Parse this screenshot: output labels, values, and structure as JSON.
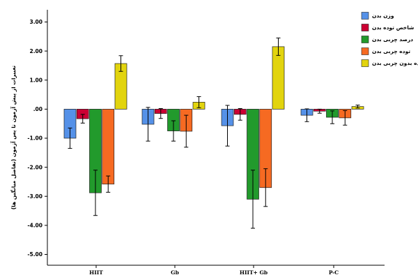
{
  "chart_data": {
    "type": "bar",
    "ylabel": "تغییرات از پیش آزمون تا پس آزمون (تفاضل میانگین ها)",
    "xlabel": "",
    "ylim": [
      -5.0,
      3.0
    ],
    "y_ticks": [
      "3.00",
      "2.00",
      "1.00",
      ".00",
      "-1.00",
      "-2.00",
      "-3.00",
      "-4.00",
      "-5.00"
    ],
    "categories": [
      "HIIT",
      "Gb",
      "HIIT+ Gb",
      "P-C"
    ],
    "legend_position": "top-right",
    "error_bars": true,
    "series": [
      {
        "name": "وزن بدن",
        "color": "#5591e8",
        "values": [
          -1.0,
          -0.52,
          -0.57,
          -0.21
        ],
        "errors": [
          0.35,
          0.58,
          0.7,
          0.22
        ]
      },
      {
        "name": "شاخص توده بدن",
        "color": "#cc0033",
        "values": [
          -0.33,
          -0.15,
          -0.18,
          -0.07
        ],
        "errors": [
          0.15,
          0.17,
          0.2,
          0.07
        ]
      },
      {
        "name": "درصد چربی بدن",
        "color": "#229a2c",
        "values": [
          -2.88,
          -0.75,
          -3.1,
          -0.28
        ],
        "errors": [
          0.78,
          0.35,
          1.0,
          0.22
        ]
      },
      {
        "name": "توده چربی بدن",
        "color": "#f66a22",
        "values": [
          -2.58,
          -0.76,
          -2.7,
          -0.3
        ],
        "errors": [
          0.28,
          0.55,
          0.65,
          0.25
        ]
      },
      {
        "name": "توده بدون چربی بدن",
        "color": "#e2d40e",
        "values": [
          1.57,
          0.24,
          2.15,
          0.09
        ],
        "errors": [
          0.27,
          0.19,
          0.3,
          0.05
        ]
      }
    ]
  }
}
